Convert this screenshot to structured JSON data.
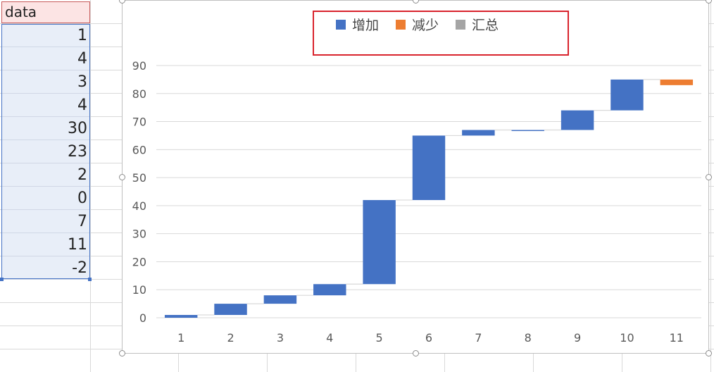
{
  "sheet": {
    "header": "data",
    "values": [
      "1",
      "4",
      "3",
      "4",
      "30",
      "23",
      "2",
      "0",
      "7",
      "11",
      "-2"
    ]
  },
  "chart_data": {
    "type": "bar",
    "subtype": "waterfall",
    "title": "",
    "xlabel": "",
    "ylabel": "",
    "categories": [
      "1",
      "2",
      "3",
      "4",
      "5",
      "6",
      "7",
      "8",
      "9",
      "10",
      "11"
    ],
    "values": [
      1,
      4,
      3,
      4,
      30,
      23,
      2,
      0,
      7,
      11,
      -2
    ],
    "ylim": [
      0,
      90
    ],
    "yticks": [
      "0",
      "10",
      "20",
      "30",
      "40",
      "50",
      "60",
      "70",
      "80",
      "90"
    ],
    "grid": true,
    "legend": {
      "placement": "top",
      "items": [
        {
          "label": "增加",
          "color": "#4472c4"
        },
        {
          "label": "减少",
          "color": "#ed7d31"
        },
        {
          "label": "汇总",
          "color": "#a5a5a5"
        }
      ]
    },
    "colors": {
      "increase": "#4472c4",
      "decrease": "#ed7d31",
      "total": "#a5a5a5",
      "connector": "#d9d9d9",
      "grid": "#d9d9d9"
    }
  }
}
